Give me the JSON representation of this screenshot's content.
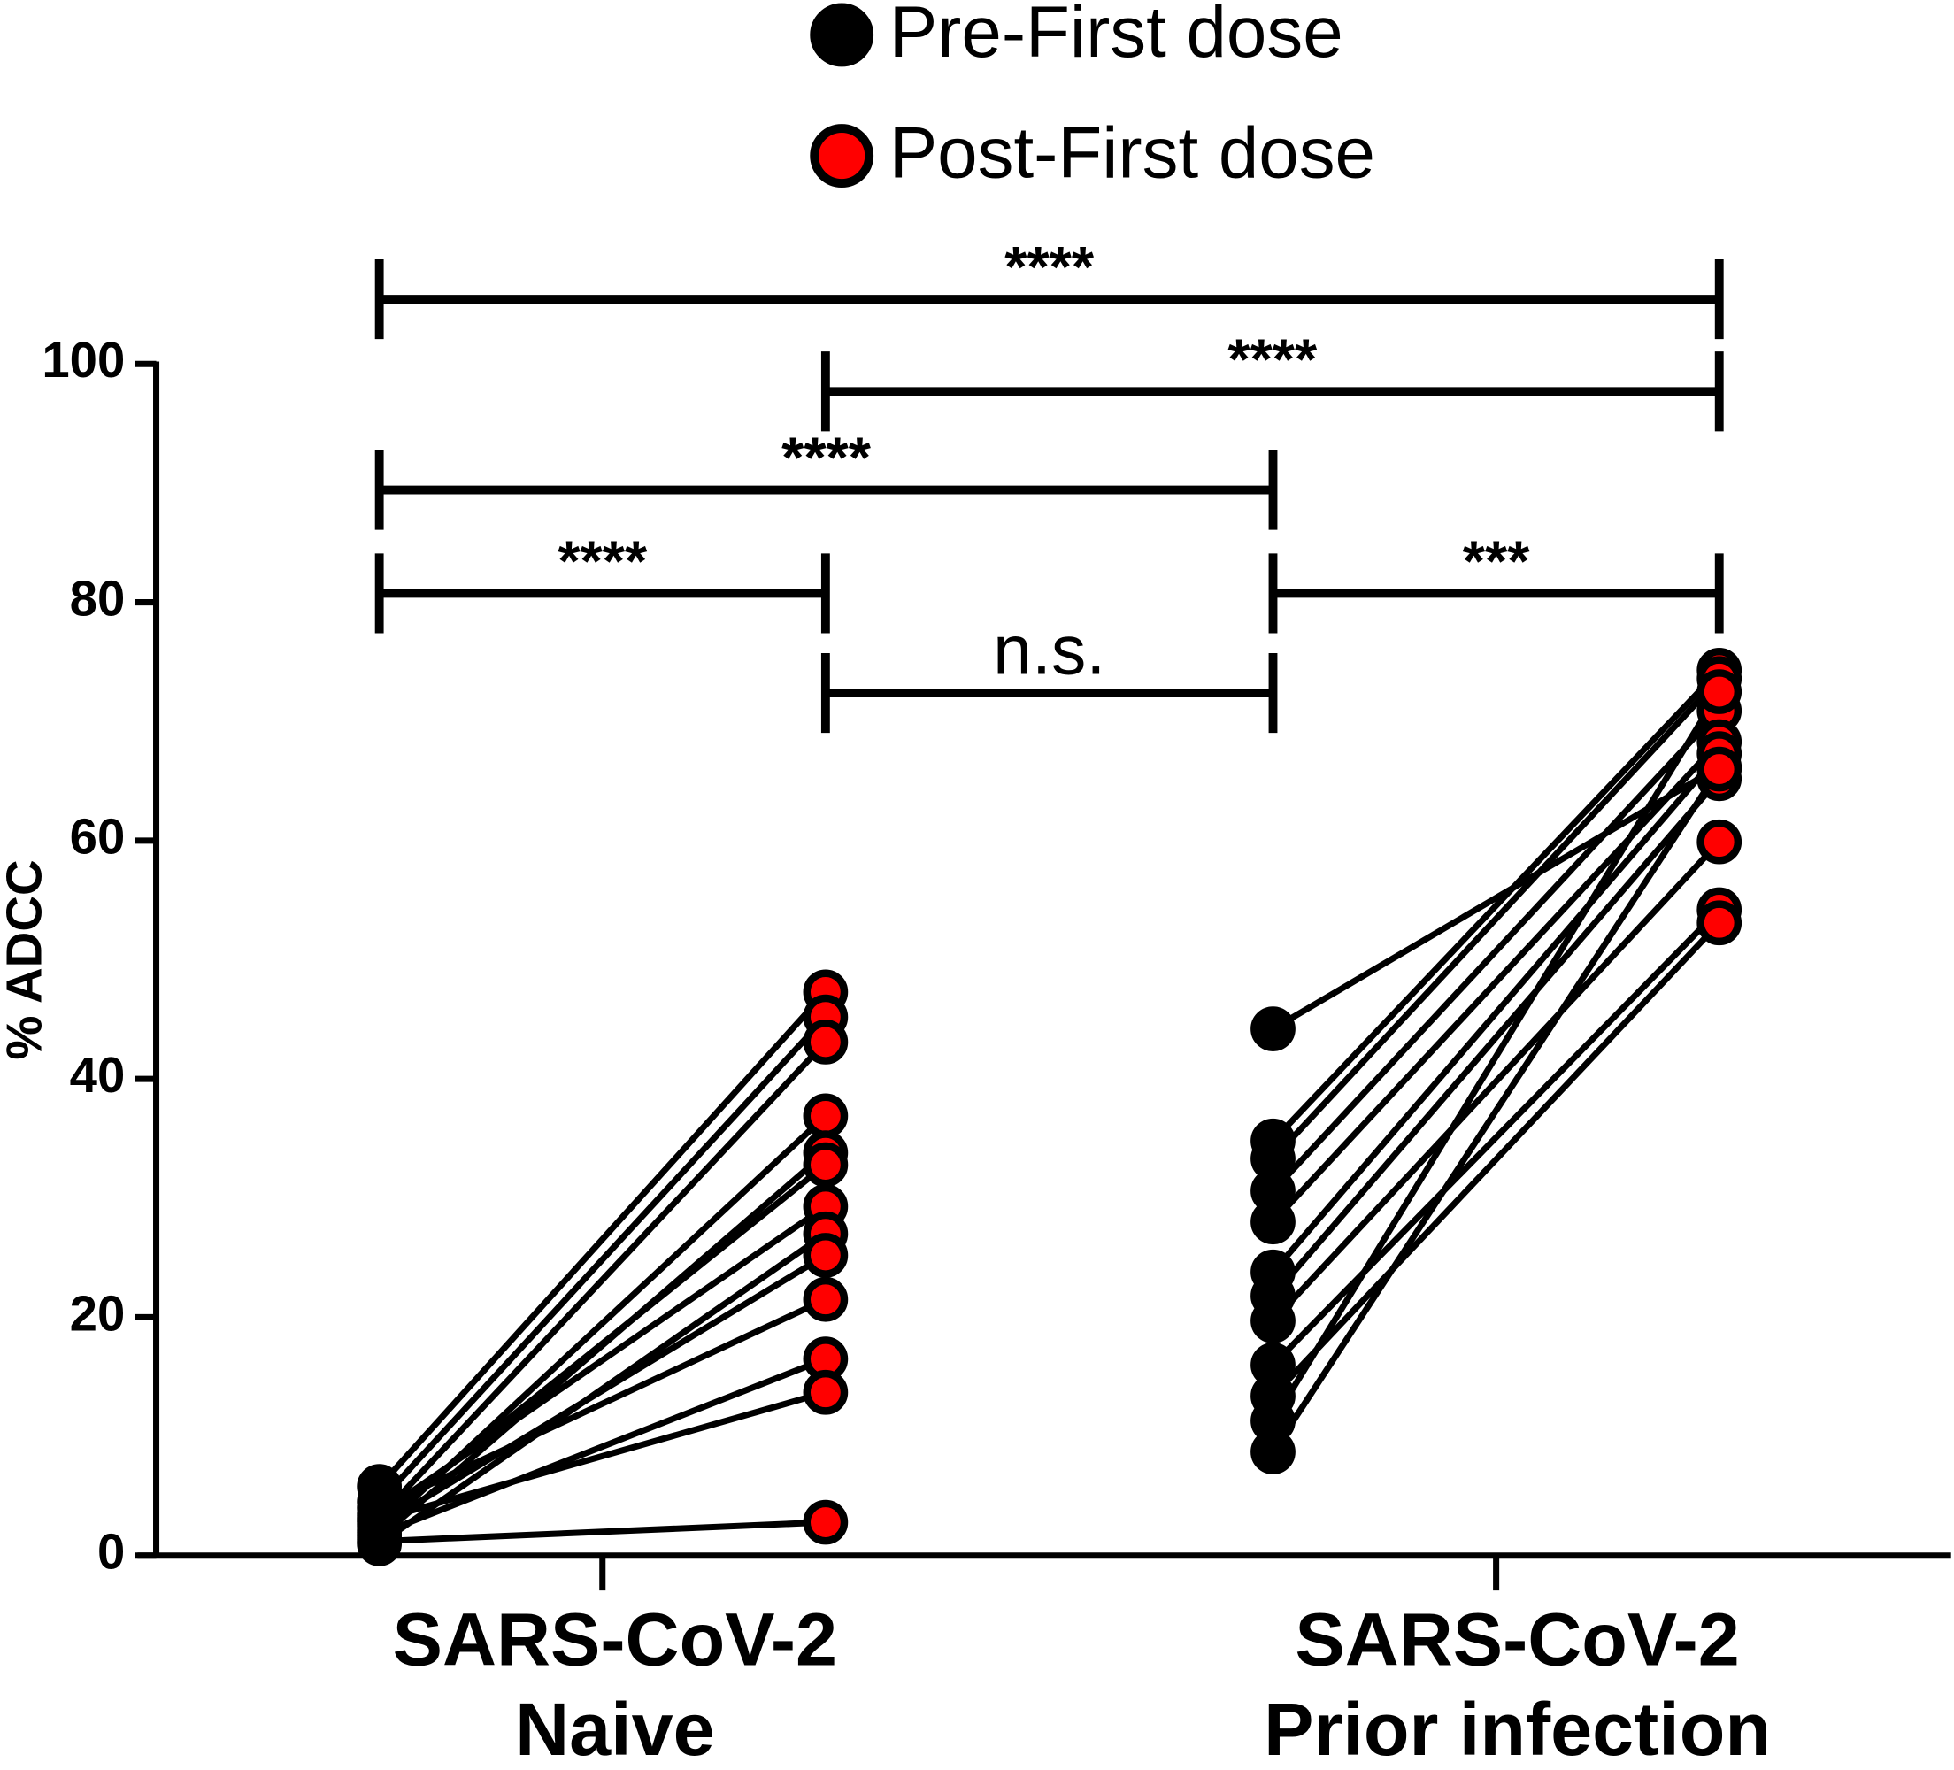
{
  "chart_data": {
    "type": "paired-dot",
    "y_label": "% ADCC",
    "categories": [
      [
        "SARS-CoV-2",
        "Naive"
      ],
      [
        "SARS-CoV-2",
        "Prior infection"
      ]
    ],
    "series": [
      {
        "name": "Pre-First dose",
        "color": "#000000",
        "values": [
          [
            5.8,
            4.5,
            3.2,
            2.1,
            1.5,
            2.8,
            3.5,
            1.0,
            2.5,
            4.0,
            1.8,
            3.0,
            1.2
          ],
          [
            44.2,
            34.8,
            33.3,
            30.6,
            28.0,
            23.8,
            21.8,
            19.7,
            16.0,
            13.4,
            11.3,
            8.7
          ]
        ]
      },
      {
        "name": "Post-First dose",
        "color": "#ff0000",
        "values": [
          [
            47.3,
            45.2,
            43.1,
            36.9,
            33.8,
            32.8,
            29.3,
            27.0,
            25.2,
            21.5,
            16.5,
            13.7,
            2.8
          ],
          [
            66.2,
            74.3,
            73.6,
            70.9,
            68.3,
            67.3,
            65.2,
            59.9,
            54.2,
            53.1,
            72.5,
            66.0
          ]
        ]
      }
    ],
    "ylim": [
      0,
      100
    ],
    "yticks": [
      0,
      20,
      40,
      60,
      80,
      100
    ],
    "comparisons": [
      {
        "from": [
          0,
          0
        ],
        "to": [
          1,
          1
        ],
        "label": "****"
      },
      {
        "from": [
          0,
          1
        ],
        "to": [
          1,
          1
        ],
        "label": "****"
      },
      {
        "from": [
          0,
          0
        ],
        "to": [
          1,
          0
        ],
        "label": "****"
      },
      {
        "from": [
          0,
          0
        ],
        "to": [
          0,
          1
        ],
        "label": "****"
      },
      {
        "from": [
          1,
          0
        ],
        "to": [
          1,
          1
        ],
        "label": "***"
      },
      {
        "from": [
          0,
          1
        ],
        "to": [
          1,
          0
        ],
        "label": "n.s."
      }
    ]
  }
}
